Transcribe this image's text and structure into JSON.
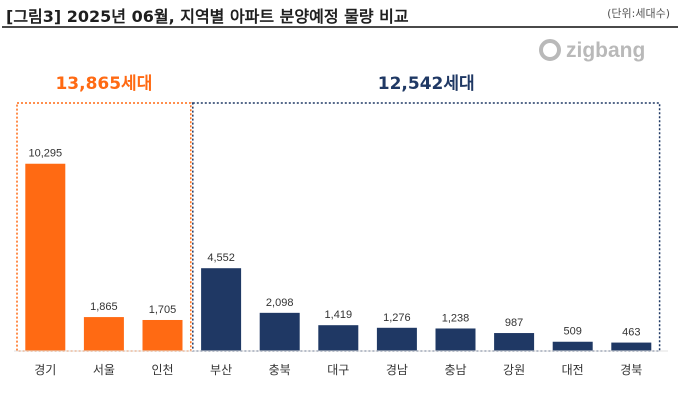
{
  "header": {
    "title": "[그림3] 2025년 06월, 지역별 아파트 분양예정 물량 비교",
    "unit": "(단위:세대수)"
  },
  "brand": {
    "name": "zigbang",
    "icon": "zigbang-logo-icon"
  },
  "groups": [
    {
      "label": "13,865세대",
      "color": "#FF6A13",
      "from": 0,
      "to": 2
    },
    {
      "label": "12,542세대",
      "color": "#1F3864",
      "from": 3,
      "to": 10
    }
  ],
  "chart_data": {
    "type": "bar",
    "categories": [
      "경기",
      "서울",
      "인천",
      "부산",
      "충북",
      "대구",
      "경남",
      "충남",
      "강원",
      "대전",
      "경북"
    ],
    "values": [
      10295,
      1865,
      1705,
      4552,
      2098,
      1419,
      1276,
      1238,
      987,
      509,
      463
    ],
    "value_labels": [
      "10,295",
      "1,865",
      "1,705",
      "4,552",
      "2,098",
      "1,419",
      "1,276",
      "1,238",
      "987",
      "509",
      "463"
    ],
    "colors": [
      "#FF6A13",
      "#FF6A13",
      "#FF6A13",
      "#1F3864",
      "#1F3864",
      "#1F3864",
      "#1F3864",
      "#1F3864",
      "#1F3864",
      "#1F3864",
      "#1F3864"
    ],
    "title": "[그림3] 2025년 06월, 지역별 아파트 분양예정 물량 비교",
    "xlabel": "",
    "ylabel": "",
    "ylim": [
      0,
      11600
    ],
    "grid": false,
    "legend": "none"
  }
}
